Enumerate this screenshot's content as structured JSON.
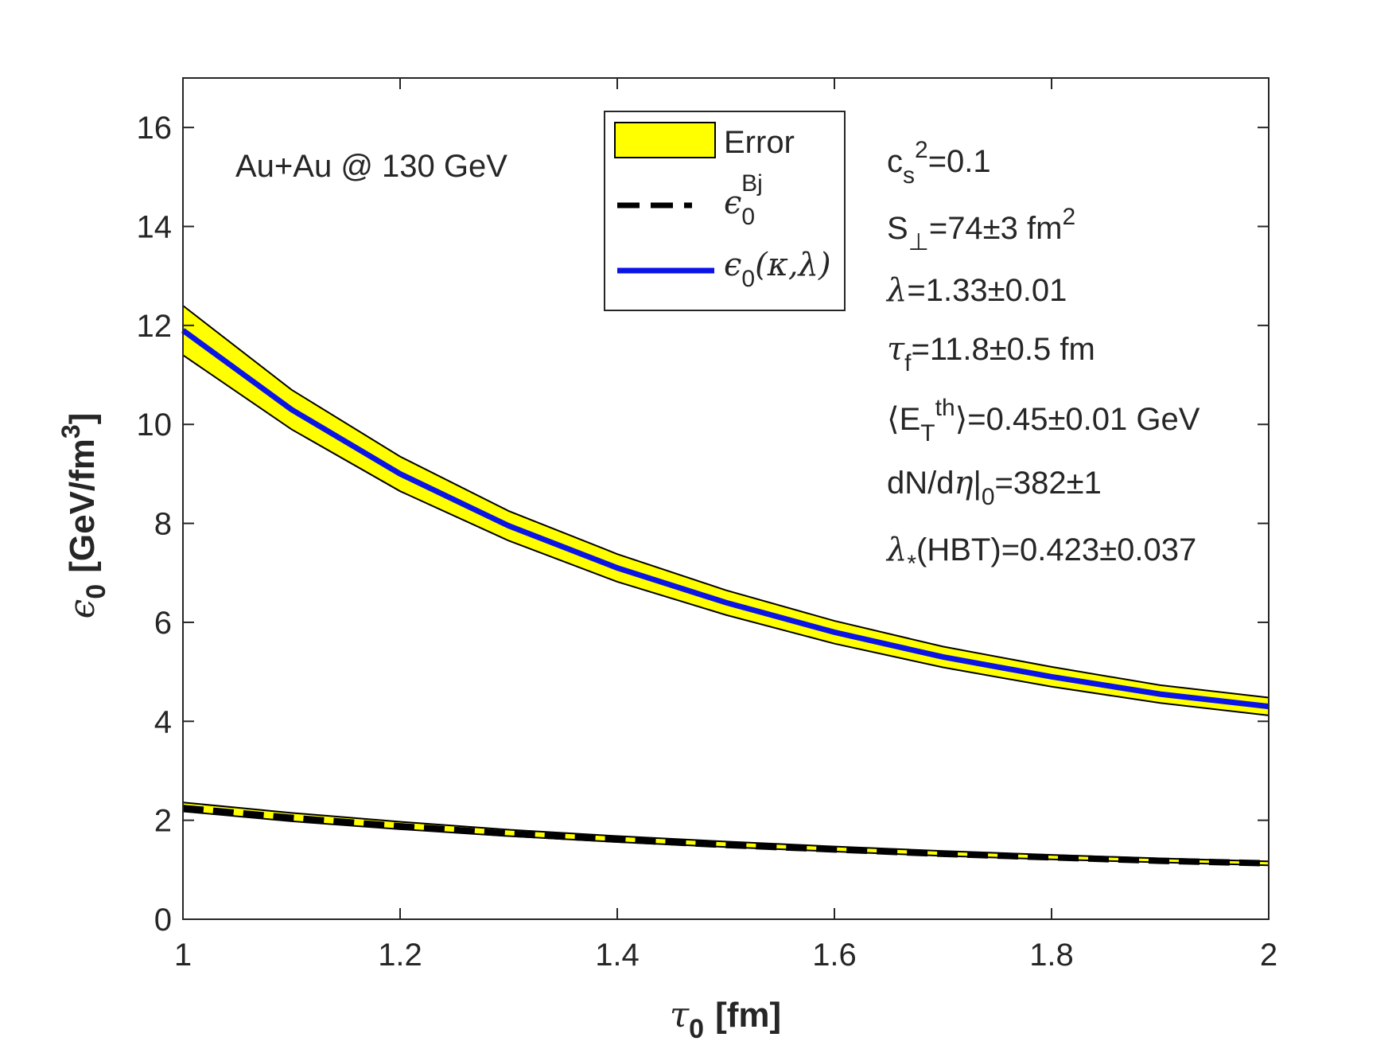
{
  "chart_data": {
    "type": "line",
    "title": "",
    "xlabel": {
      "symbol": "τ",
      "sub": "0",
      "unit": "[fm]"
    },
    "ylabel": {
      "symbol": "ϵ",
      "sub": "0",
      "unit_pre": "[GeV/fm",
      "unit_sup": "3",
      "unit_post": "]"
    },
    "xlim": [
      1,
      2
    ],
    "ylim": [
      0,
      17
    ],
    "xticks": [
      1,
      1.2,
      1.4,
      1.6,
      1.8,
      2
    ],
    "xtick_labels": [
      "1",
      "1.2",
      "1.4",
      "1.6",
      "1.8",
      "2"
    ],
    "yticks": [
      0,
      2,
      4,
      6,
      8,
      10,
      12,
      14,
      16
    ],
    "ytick_labels": [
      "0",
      "2",
      "4",
      "6",
      "8",
      "10",
      "12",
      "14",
      "16"
    ],
    "grid": false,
    "legend_position": "top-center",
    "legend": [
      {
        "key": "error",
        "text": "Error"
      },
      {
        "key": "bjorken",
        "sym": "ϵ",
        "sub": "0",
        "sup": "Bj"
      },
      {
        "key": "model",
        "sym": "ϵ",
        "sub": "0",
        "args": "(κ,λ)"
      }
    ],
    "series": [
      {
        "name": "ϵ0(κ,λ)",
        "style": "solid",
        "color": "#0a14e6",
        "x": [
          1.0,
          1.1,
          1.2,
          1.3,
          1.4,
          1.5,
          1.6,
          1.7,
          1.8,
          1.9,
          2.0
        ],
        "y": [
          11.9,
          10.3,
          9.0,
          7.95,
          7.1,
          6.4,
          5.8,
          5.3,
          4.9,
          4.55,
          4.3
        ],
        "band_lower": [
          11.4,
          9.9,
          8.65,
          7.65,
          6.82,
          6.15,
          5.57,
          5.09,
          4.7,
          4.37,
          4.12
        ],
        "band_upper": [
          12.4,
          10.7,
          9.35,
          8.25,
          7.38,
          6.65,
          6.03,
          5.51,
          5.1,
          4.73,
          4.48
        ]
      },
      {
        "name": "ϵ0^Bj",
        "style": "dashed",
        "color": "#000000",
        "x": [
          1.0,
          1.1,
          1.2,
          1.3,
          1.4,
          1.5,
          1.6,
          1.7,
          1.8,
          1.9,
          2.0
        ],
        "y": [
          2.25,
          2.05,
          1.88,
          1.73,
          1.61,
          1.5,
          1.41,
          1.32,
          1.25,
          1.18,
          1.13
        ],
        "band_lower": [
          2.18,
          1.98,
          1.82,
          1.68,
          1.56,
          1.46,
          1.37,
          1.28,
          1.21,
          1.15,
          1.09
        ],
        "band_upper": [
          2.36,
          2.15,
          1.97,
          1.81,
          1.68,
          1.57,
          1.47,
          1.38,
          1.3,
          1.23,
          1.17
        ]
      }
    ],
    "annotations": {
      "collision": "Au+Au @ 130 GeV",
      "params": [
        {
          "key": "cs2",
          "parts": [
            {
              "t": "c"
            },
            {
              "t": "s",
              "sub": true
            },
            {
              "t": "2",
              "sup": true
            },
            {
              "t": "=0.1"
            }
          ]
        },
        {
          "key": "area",
          "parts": [
            {
              "t": "S"
            },
            {
              "t": "⊥",
              "sub": true
            },
            {
              "t": "=74±3 fm"
            },
            {
              "t": "2",
              "sup": true
            }
          ]
        },
        {
          "key": "lambda",
          "parts": [
            {
              "t": "λ",
              "italic": true
            },
            {
              "t": "=1.33±0.01"
            }
          ]
        },
        {
          "key": "tauf",
          "parts": [
            {
              "t": "τ",
              "italic": true
            },
            {
              "t": "f",
              "sub": true
            },
            {
              "t": "=11.8±0.5 fm"
            }
          ]
        },
        {
          "key": "et",
          "parts": [
            {
              "t": "⟨E"
            },
            {
              "t": "T",
              "sub": true
            },
            {
              "t": "th",
              "sup": true
            },
            {
              "t": "⟩=0.45±0.01 GeV"
            }
          ]
        },
        {
          "key": "dndeta",
          "parts": [
            {
              "t": "dN/d"
            },
            {
              "t": "η",
              "italic": true
            },
            {
              "t": "|"
            },
            {
              "t": "0",
              "sub": true
            },
            {
              "t": "=382±1"
            }
          ]
        },
        {
          "key": "hbt",
          "parts": [
            {
              "t": "λ",
              "italic": true
            },
            {
              "t": "*",
              "sub": true
            },
            {
              "t": "(HBT)=0.423±0.037"
            }
          ]
        }
      ]
    },
    "colors": {
      "band_fill": "#ffff00",
      "band_edge": "#000000",
      "axes": "#262626"
    }
  }
}
